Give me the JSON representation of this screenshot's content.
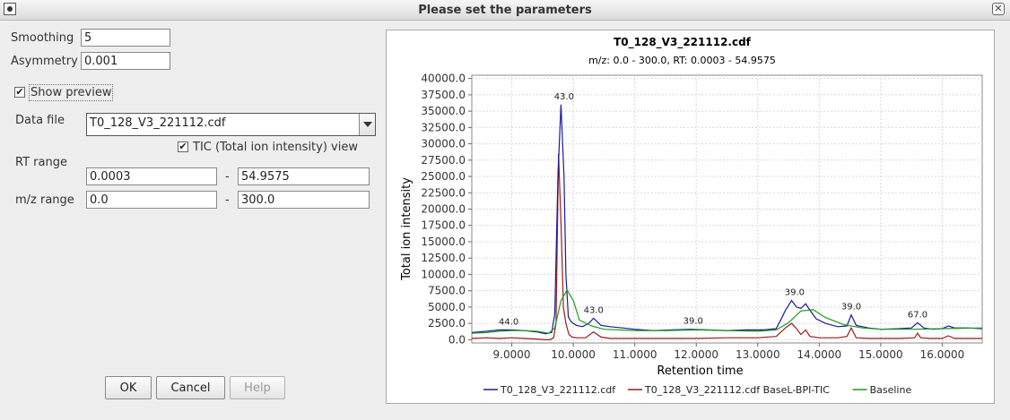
{
  "window": {
    "title": "Please set the parameters"
  },
  "form": {
    "smoothing_label": "Smoothing",
    "smoothing_value": "5",
    "asymmetry_label": "Asymmetry",
    "asymmetry_value": "0.001",
    "show_preview_label": "Show preview",
    "show_preview_checked": true,
    "data_file_label": "Data file",
    "data_file_value": "T0_128_V3_221112.cdf",
    "tic_label": "TIC (Total ion intensity) view",
    "tic_checked": true,
    "rt_range_label": "RT range",
    "rt_min": "0.0003",
    "rt_max": "54.9575",
    "mz_range_label": "m/z range",
    "mz_min": "0.0",
    "mz_max": "300.0",
    "range_sep": "-"
  },
  "buttons": {
    "ok": "OK",
    "cancel": "Cancel",
    "help": "Help"
  },
  "chart_data": {
    "type": "line",
    "title": "T0_128_V3_221112.cdf",
    "subtitle": "m/z: 0.0 - 300.0, RT: 0.0003 - 54.9575",
    "xlabel": "Retention time",
    "ylabel": "Total ion intensity",
    "xlim": [
      8.35,
      16.65
    ],
    "ylim": [
      -500,
      40500
    ],
    "xticks": [
      9.0,
      10.0,
      11.0,
      12.0,
      13.0,
      14.0,
      15.0,
      16.0
    ],
    "xtick_labels": [
      "9.0000",
      "10.0000",
      "11.0000",
      "12.0000",
      "13.0000",
      "14.0000",
      "15.0000",
      "16.0000"
    ],
    "yticks": [
      0,
      2500,
      5000,
      7500,
      10000,
      12500,
      15000,
      17500,
      20000,
      22500,
      25000,
      27500,
      30000,
      32500,
      35000,
      37500,
      40000
    ],
    "ytick_labels": [
      "0.0",
      "2500.0",
      "5000.0",
      "7500.0",
      "10000.0",
      "12500.0",
      "15000.0",
      "17500.0",
      "20000.0",
      "22500.0",
      "25000.0",
      "27500.0",
      "30000.0",
      "32500.0",
      "35000.0",
      "37500.0",
      "40000.0"
    ],
    "grid": true,
    "legend_position": "bottom",
    "series": [
      {
        "name": "T0_128_V3_221112.cdf",
        "color": "#1a1a9c",
        "x": [
          8.35,
          8.6,
          8.8,
          9.0,
          9.2,
          9.4,
          9.55,
          9.65,
          9.7,
          9.75,
          9.8,
          9.85,
          9.88,
          9.92,
          9.96,
          10.0,
          10.05,
          10.15,
          10.25,
          10.33,
          10.45,
          10.6,
          10.8,
          11.0,
          11.3,
          11.6,
          11.9,
          12.2,
          12.5,
          12.8,
          13.1,
          13.3,
          13.4,
          13.45,
          13.55,
          13.63,
          13.7,
          13.78,
          13.85,
          13.95,
          14.1,
          14.3,
          14.45,
          14.52,
          14.6,
          14.8,
          15.0,
          15.3,
          15.5,
          15.6,
          15.7,
          15.85,
          16.0,
          16.1,
          16.2,
          16.4,
          16.65
        ],
        "y": [
          1100,
          1300,
          1500,
          1500,
          1400,
          1200,
          900,
          1100,
          4000,
          25000,
          36000,
          25000,
          10000,
          3500,
          2800,
          2500,
          2200,
          2000,
          2500,
          3300,
          2200,
          2000,
          1800,
          1600,
          1400,
          1500,
          1600,
          1500,
          1400,
          1500,
          1500,
          1700,
          3500,
          4500,
          6000,
          5000,
          4800,
          5500,
          4500,
          3200,
          2500,
          2000,
          2100,
          3800,
          2200,
          1800,
          1600,
          1700,
          1800,
          2600,
          1800,
          1600,
          1700,
          2100,
          1800,
          1800,
          1700
        ]
      },
      {
        "name": "T0_128_V3_221112.cdf BaseL-BPI-TIC",
        "color": "#9c1a1a",
        "x": [
          8.35,
          8.6,
          8.8,
          9.0,
          9.2,
          9.4,
          9.55,
          9.62,
          9.68,
          9.72,
          9.76,
          9.8,
          9.84,
          9.88,
          9.93,
          9.98,
          10.05,
          10.2,
          10.33,
          10.45,
          10.6,
          10.8,
          11.0,
          11.5,
          12.0,
          12.5,
          13.0,
          13.3,
          13.45,
          13.55,
          13.62,
          13.7,
          13.78,
          13.85,
          14.0,
          14.3,
          14.45,
          14.52,
          14.6,
          14.8,
          15.3,
          15.55,
          15.6,
          15.65,
          15.8,
          16.0,
          16.1,
          16.2,
          16.65
        ],
        "y": [
          200,
          300,
          200,
          300,
          200,
          100,
          0,
          0,
          300,
          2500,
          28500,
          18000,
          5000,
          2500,
          800,
          400,
          300,
          300,
          1200,
          400,
          200,
          200,
          200,
          200,
          200,
          300,
          300,
          500,
          1800,
          2500,
          1800,
          800,
          1500,
          500,
          300,
          300,
          500,
          1800,
          300,
          200,
          200,
          300,
          1000,
          300,
          200,
          200,
          600,
          200,
          200
        ]
      },
      {
        "name": "Baseline",
        "color": "#1a9c1a",
        "x": [
          8.35,
          8.6,
          8.8,
          9.0,
          9.2,
          9.4,
          9.6,
          9.7,
          9.8,
          9.9,
          10.0,
          10.1,
          10.3,
          10.5,
          11.0,
          11.5,
          12.0,
          12.5,
          13.0,
          13.3,
          13.5,
          13.7,
          13.9,
          14.1,
          14.4,
          14.7,
          15.0,
          15.5,
          16.0,
          16.65
        ],
        "y": [
          1000,
          1100,
          1300,
          1400,
          1400,
          1300,
          1000,
          1800,
          6000,
          7600,
          6000,
          3000,
          2100,
          1600,
          1400,
          1400,
          1500,
          1400,
          1300,
          1500,
          2600,
          4400,
          4600,
          3400,
          2300,
          1800,
          1600,
          1600,
          1700,
          1800
        ]
      }
    ],
    "annotations": [
      {
        "x": 9.85,
        "y": 36000,
        "text": "43.0"
      },
      {
        "x": 8.95,
        "y": 1500,
        "text": "44.0"
      },
      {
        "x": 10.33,
        "y": 3300,
        "text": "43.0"
      },
      {
        "x": 11.95,
        "y": 1600,
        "text": "39.0"
      },
      {
        "x": 13.6,
        "y": 6000,
        "text": "39.0"
      },
      {
        "x": 14.52,
        "y": 3800,
        "text": "39.0"
      },
      {
        "x": 15.6,
        "y": 2600,
        "text": "67.0"
      }
    ]
  }
}
